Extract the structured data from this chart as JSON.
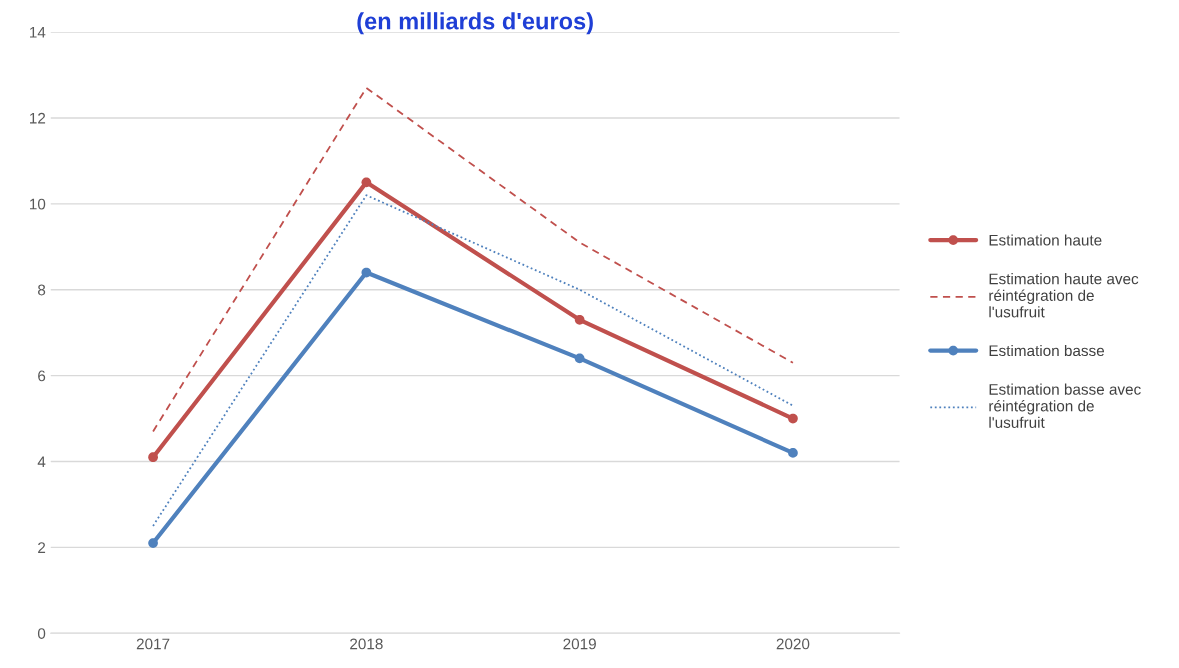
{
  "chart_data": {
    "type": "line",
    "title": "(en milliards d'euros)",
    "categories": [
      "2017",
      "2018",
      "2019",
      "2020"
    ],
    "series": [
      {
        "name": "Estimation haute",
        "color": "#c0504d",
        "values": [
          4.1,
          10.5,
          7.3,
          5.0
        ],
        "marker": "circle",
        "line_style": "solid"
      },
      {
        "name": "Estimation haute avec\nréintégration de\nl'usufruit",
        "color": "#c0504d",
        "values": [
          4.7,
          12.7,
          9.1,
          6.3
        ],
        "marker": "none",
        "line_style": "dashed"
      },
      {
        "name": "Estimation basse",
        "color": "#4f81bd",
        "values": [
          2.1,
          8.4,
          6.4,
          4.2
        ],
        "marker": "circle",
        "line_style": "solid"
      },
      {
        "name": "Estimation basse avec\nréintégration de\nl'usufruit",
        "color": "#4f81bd",
        "values": [
          2.5,
          10.2,
          8.0,
          5.3
        ],
        "marker": "none",
        "line_style": "dotted"
      }
    ],
    "ylim": [
      0,
      14
    ],
    "yticks": [
      0,
      2,
      4,
      6,
      8,
      10,
      12,
      14
    ],
    "grid": "y",
    "legend": "right"
  }
}
